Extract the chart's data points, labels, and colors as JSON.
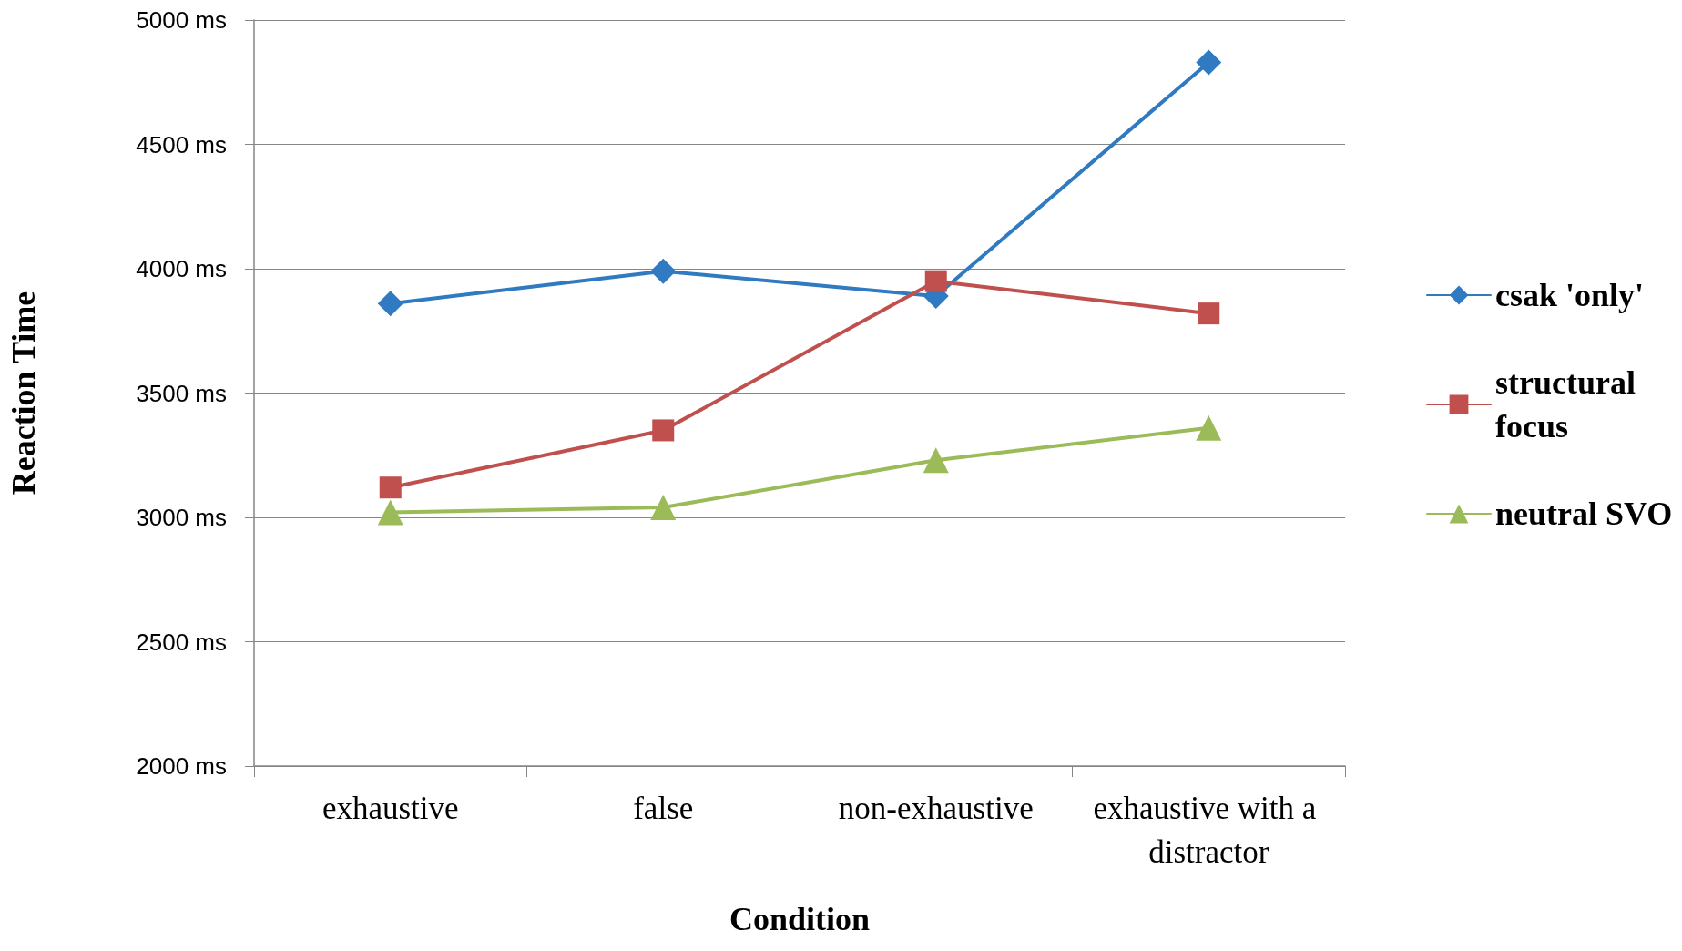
{
  "chart_data": {
    "type": "line",
    "xlabel": "Condition",
    "ylabel": "Reaction Time",
    "categories": [
      "exhaustive",
      "false",
      "non-exhaustive",
      "exhaustive with a distractor"
    ],
    "series": [
      {
        "name": "csak 'only'",
        "color": "#2f7ac0",
        "marker": "diamond",
        "values": [
          3860,
          3990,
          3890,
          4830
        ]
      },
      {
        "name": "structural focus",
        "color": "#c0504d",
        "marker": "square",
        "values": [
          3120,
          3350,
          3950,
          3820
        ]
      },
      {
        "name": "neutral SVO",
        "color": "#9bbb59",
        "marker": "triangle",
        "values": [
          3020,
          3040,
          3230,
          3360
        ]
      }
    ],
    "ylim": [
      2000,
      5000
    ],
    "yticks": [
      {
        "value": 2000,
        "label": "2000 ms"
      },
      {
        "value": 2500,
        "label": "2500 ms"
      },
      {
        "value": 3000,
        "label": "3000 ms"
      },
      {
        "value": 3500,
        "label": "3500 ms"
      },
      {
        "value": 4000,
        "label": "4000 ms"
      },
      {
        "value": 4500,
        "label": "4500 ms"
      },
      {
        "value": 5000,
        "label": "5000 ms"
      }
    ],
    "grid": "y",
    "legend": "right",
    "line_style": "solid"
  }
}
